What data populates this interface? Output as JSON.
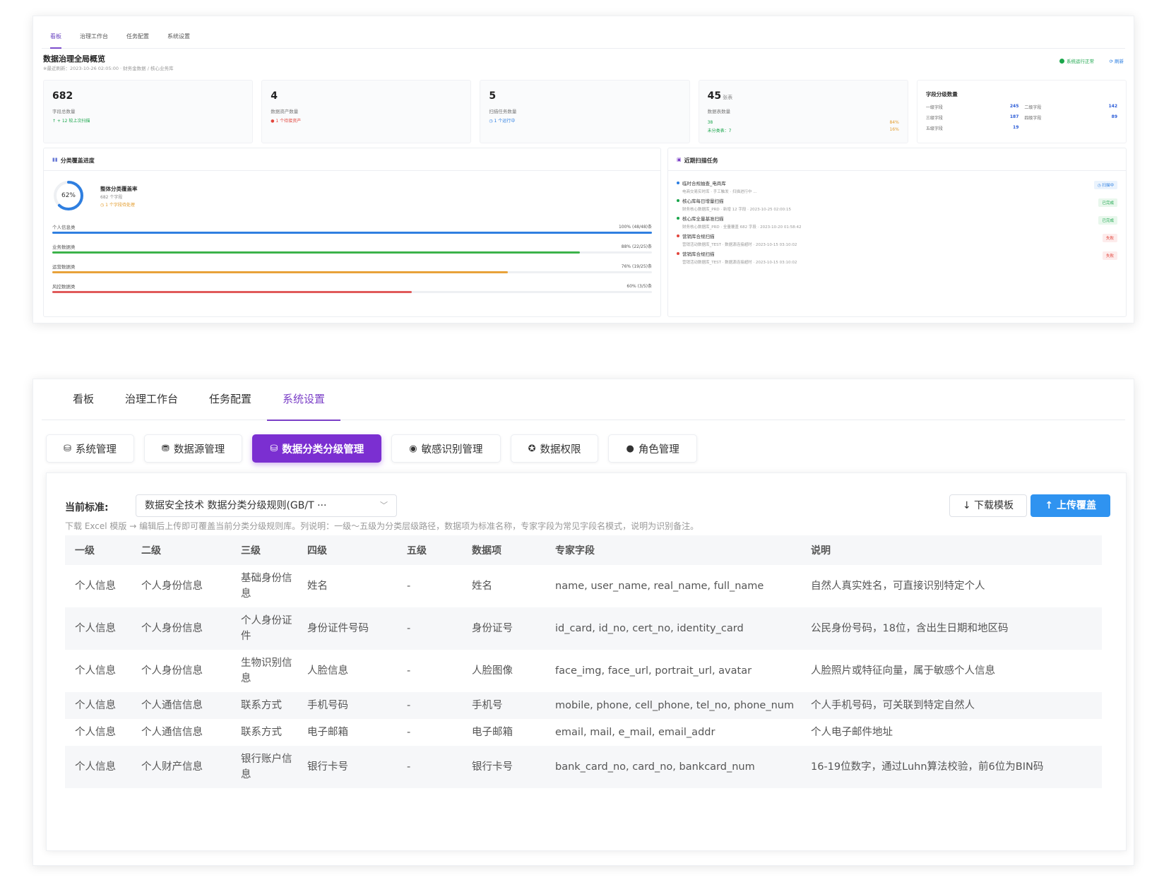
{
  "dashboard": {
    "tabs": [
      "看板",
      "治理工作台",
      "任务配置",
      "系统设置"
    ],
    "title": "数据治理全局概览",
    "subtitle": "※最近刷新：2023-10-26 02:05:00 · 财务金数据 / 核心业务库",
    "status": "系统运行正常",
    "refresh": "刷新",
    "cards": [
      {
        "num": "682",
        "label": "字段总数量",
        "note": "↑ + 12 较上次扫描",
        "note_color": "#1aa64b"
      },
      {
        "num": "4",
        "label": "数据资产数量",
        "note": "● 1 个待接资产",
        "note_color": "#e2453c"
      },
      {
        "num": "5",
        "label": "扫描任务数量",
        "note": "◷ 1 个运行中",
        "note_color": "#2a7de1"
      },
      {
        "num": "45",
        "unit": "张表",
        "label": "数据表数量",
        "r1": "38",
        "r2": "未分类表：7",
        "p1": "84%",
        "p2": "16%"
      }
    ],
    "levels": {
      "title": "字段分级数量",
      "items": [
        {
          "name": "一级字段",
          "value": "245"
        },
        {
          "name": "二级字段",
          "value": "142"
        },
        {
          "name": "三级字段",
          "value": "187"
        },
        {
          "name": "四级字段",
          "value": "89"
        },
        {
          "name": "五级字段",
          "value": "19"
        }
      ]
    },
    "coverage": {
      "title": "分类覆盖进度",
      "overall_pct": "62%",
      "overall_value": 0.62,
      "overall_label": "整体分类覆盖率",
      "overall_sub": "682 个字段",
      "overall_warn": "◷ 1 个字段待处理",
      "bars": [
        {
          "label": "个人信息类",
          "value_text": "100% (48/48)条",
          "pct": 100,
          "color": "#2f7fe0"
        },
        {
          "label": "业务数据类",
          "value_text": "88% (22/25)条",
          "pct": 88,
          "color": "#3cb34a"
        },
        {
          "label": "运营数据类",
          "value_text": "76% (19/25)条",
          "pct": 76,
          "color": "#e8a23a"
        },
        {
          "label": "风控数据类",
          "value_text": "60% (3/5)条",
          "pct": 60,
          "color": "#e05a5a"
        }
      ]
    },
    "recent": {
      "title": "近期扫描任务",
      "tasks": [
        {
          "name": "临时合规抽查_电商库",
          "detail": "电商交易实时库 · 手工触发 · 扫描进行中 ...",
          "badge": "◷ 扫描中",
          "dot": "#2a7de1",
          "badge_color": "#2a7de1",
          "badge_bg": "#eaf3fd"
        },
        {
          "name": "核心库每日增量扫描",
          "detail": "财务核心数据库_PRD · 新增 12 字段 · 2023-10-25 02:00:15",
          "badge": "已完成",
          "dot": "#1aa64b",
          "badge_color": "#1aa64b",
          "badge_bg": "#e8f7ec"
        },
        {
          "name": "核心库全量基准扫描",
          "detail": "财务核心数据库_PRD · 全量覆盖 682 字段 · 2023-10-20 01:58:42",
          "badge": "已完成",
          "dot": "#1aa64b",
          "badge_color": "#1aa64b",
          "badge_bg": "#e8f7ec"
        },
        {
          "name": "营销库合规扫描",
          "detail": "营销活动数据库_TEST · 数据源连接超时 · 2023-10-15 03:10:02",
          "badge": "失败",
          "dot": "#e2453c",
          "badge_color": "#e2453c",
          "badge_bg": "#fdecec"
        },
        {
          "name": "营销库合规扫描",
          "detail": "营销活动数据库_TEST · 数据源连接超时 · 2023-10-15 03:10:02",
          "badge": "失败",
          "dot": "#e2453c",
          "badge_color": "#e2453c",
          "badge_bg": "#fdecec"
        }
      ]
    }
  },
  "settings": {
    "tabs": [
      "看板",
      "治理工作台",
      "任务配置",
      "系统设置"
    ],
    "subnav": [
      {
        "icon": "⛁",
        "label": "系统管理"
      },
      {
        "icon": "⛃",
        "label": "数据源管理"
      },
      {
        "icon": "⛁",
        "label": "数据分类分级管理"
      },
      {
        "icon": "◉",
        "label": "敏感识别管理"
      },
      {
        "icon": "✪",
        "label": "数据权限"
      },
      {
        "icon": "●",
        "label": "角色管理"
      }
    ],
    "standard_label": "当前标准:",
    "standard_value": "数据安全技术 数据分类分级规则(GB/T ···",
    "download_btn": "↓ 下载模板",
    "upload_btn": "↑ 上传覆盖",
    "hint": "下载 Excel 模版 → 编辑后上传即可覆盖当前分类分级规则库。列说明：一级～五级为分类层级路径，数据项为标准名称，专家字段为常见字段名模式，说明为识别备注。",
    "columns": [
      "一级",
      "二级",
      "三级",
      "四级",
      "五级",
      "数据项",
      "专家字段",
      "说明"
    ],
    "rows": [
      [
        "个人信息",
        "个人身份信息",
        "基础身份信息",
        "姓名",
        "-",
        "姓名",
        "name, user_name, real_name, full_name",
        "自然人真实姓名，可直接识别特定个人"
      ],
      [
        "个人信息",
        "个人身份信息",
        "个人身份证件",
        "身份证件号码",
        "-",
        "身份证号",
        "id_card, id_no, cert_no, identity_card",
        "公民身份号码，18位，含出生日期和地区码"
      ],
      [
        "个人信息",
        "个人身份信息",
        "生物识别信息",
        "人脸信息",
        "-",
        "人脸图像",
        "face_img, face_url, portrait_url, avatar",
        "人脸照片或特征向量，属于敏感个人信息"
      ],
      [
        "个人信息",
        "个人通信信息",
        "联系方式",
        "手机号码",
        "-",
        "手机号",
        "mobile, phone, cell_phone, tel_no, phone_num",
        "个人手机号码，可关联到特定自然人"
      ],
      [
        "个人信息",
        "个人通信信息",
        "联系方式",
        "电子邮箱",
        "-",
        "电子邮箱",
        "email, mail, e_mail, email_addr",
        "个人电子邮件地址"
      ],
      [
        "个人信息",
        "个人财产信息",
        "银行账户信息",
        "银行卡号",
        "-",
        "银行卡号",
        "bank_card_no, card_no, bankcard_num",
        "16-19位数字，通过Luhn算法校验，前6位为BIN码"
      ]
    ]
  }
}
